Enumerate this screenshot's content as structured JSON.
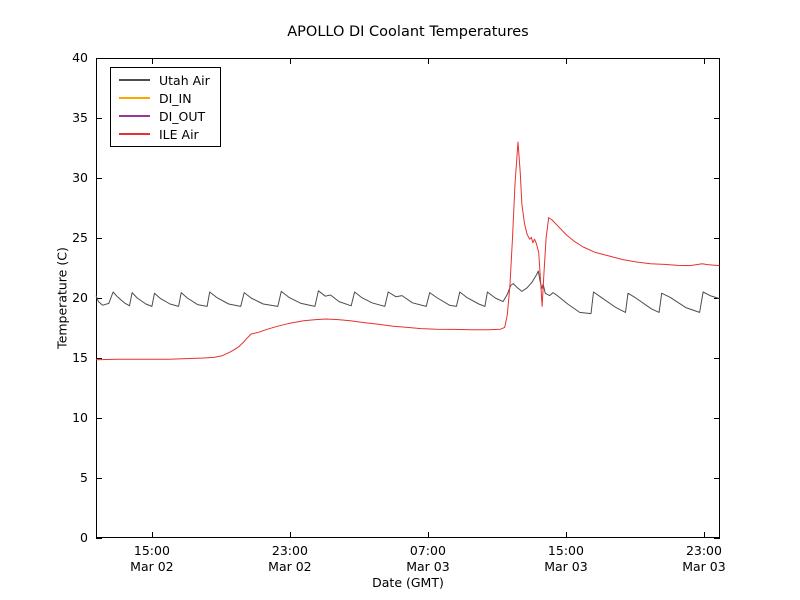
{
  "chart_data": {
    "type": "line",
    "title": "APOLLO DI Coolant Temperatures",
    "xlabel": "Date (GMT)",
    "ylabel": "Temperature (C)",
    "x_unit": "hours since Mar 02 00:00 GMT",
    "xlim": [
      11.76,
      47.93
    ],
    "ylim": [
      0,
      40
    ],
    "grid": false,
    "legend_position": "upper left",
    "background": "#ffffff",
    "axis_color": "#000000",
    "y_ticks": [
      0,
      5,
      10,
      15,
      20,
      25,
      30,
      35,
      40
    ],
    "x_ticks": [
      {
        "t": 15,
        "time": "15:00",
        "date": "Mar 02"
      },
      {
        "t": 23,
        "time": "23:00",
        "date": "Mar 02"
      },
      {
        "t": 31,
        "time": "07:00",
        "date": "Mar 03"
      },
      {
        "t": 39,
        "time": "15:00",
        "date": "Mar 03"
      },
      {
        "t": 47,
        "time": "23:00",
        "date": "Mar 03"
      }
    ],
    "series": [
      {
        "name": "Utah Air",
        "color": "#4d4d4d",
        "points": [
          [
            11.76,
            20.2
          ],
          [
            11.9,
            19.7
          ],
          [
            12.15,
            19.4
          ],
          [
            12.5,
            19.55
          ],
          [
            12.75,
            20.5
          ],
          [
            13.0,
            20.1
          ],
          [
            13.4,
            19.6
          ],
          [
            13.7,
            19.35
          ],
          [
            13.85,
            20.45
          ],
          [
            14.15,
            20.0
          ],
          [
            14.65,
            19.5
          ],
          [
            15.0,
            19.3
          ],
          [
            15.15,
            20.4
          ],
          [
            15.5,
            19.95
          ],
          [
            16.05,
            19.5
          ],
          [
            16.55,
            19.3
          ],
          [
            16.7,
            20.45
          ],
          [
            17.05,
            20.0
          ],
          [
            17.65,
            19.45
          ],
          [
            18.2,
            19.3
          ],
          [
            18.35,
            20.5
          ],
          [
            18.75,
            20.05
          ],
          [
            19.45,
            19.5
          ],
          [
            20.15,
            19.3
          ],
          [
            20.35,
            20.45
          ],
          [
            20.75,
            20.0
          ],
          [
            21.45,
            19.5
          ],
          [
            22.3,
            19.3
          ],
          [
            22.5,
            20.55
          ],
          [
            22.95,
            20.05
          ],
          [
            23.65,
            19.55
          ],
          [
            24.45,
            19.3
          ],
          [
            24.65,
            20.6
          ],
          [
            25.05,
            20.15
          ],
          [
            25.35,
            20.25
          ],
          [
            25.85,
            19.7
          ],
          [
            26.55,
            19.35
          ],
          [
            26.75,
            20.5
          ],
          [
            27.15,
            20.05
          ],
          [
            27.75,
            19.6
          ],
          [
            28.5,
            19.3
          ],
          [
            28.7,
            20.5
          ],
          [
            29.15,
            20.1
          ],
          [
            29.5,
            20.2
          ],
          [
            30.1,
            19.6
          ],
          [
            30.9,
            19.3
          ],
          [
            31.1,
            20.45
          ],
          [
            31.55,
            20.0
          ],
          [
            32.25,
            19.4
          ],
          [
            32.65,
            19.3
          ],
          [
            32.85,
            20.5
          ],
          [
            33.25,
            20.05
          ],
          [
            33.95,
            19.5
          ],
          [
            34.3,
            19.3
          ],
          [
            34.45,
            20.5
          ],
          [
            34.9,
            20.0
          ],
          [
            35.35,
            19.7
          ],
          [
            35.6,
            20.3
          ],
          [
            35.8,
            21.05
          ],
          [
            35.95,
            21.2
          ],
          [
            36.15,
            20.9
          ],
          [
            36.45,
            20.55
          ],
          [
            36.75,
            20.85
          ],
          [
            37.05,
            21.35
          ],
          [
            37.3,
            21.95
          ],
          [
            37.4,
            22.25
          ],
          [
            37.5,
            21.4
          ],
          [
            37.6,
            20.8
          ],
          [
            37.68,
            21.15
          ],
          [
            37.8,
            20.4
          ],
          [
            38.05,
            20.2
          ],
          [
            38.25,
            20.45
          ],
          [
            38.5,
            20.2
          ],
          [
            39.1,
            19.5
          ],
          [
            39.8,
            18.8
          ],
          [
            40.45,
            18.7
          ],
          [
            40.6,
            20.5
          ],
          [
            41.0,
            20.1
          ],
          [
            41.9,
            19.2
          ],
          [
            42.45,
            18.8
          ],
          [
            42.6,
            20.4
          ],
          [
            43.05,
            20.0
          ],
          [
            43.95,
            19.1
          ],
          [
            44.4,
            18.8
          ],
          [
            44.55,
            20.4
          ],
          [
            45.05,
            20.05
          ],
          [
            45.95,
            19.2
          ],
          [
            46.75,
            18.8
          ],
          [
            46.95,
            20.5
          ],
          [
            47.35,
            20.2
          ],
          [
            47.9,
            19.95
          ]
        ]
      },
      {
        "name": "DI_IN",
        "color": "#ffa500",
        "points": []
      },
      {
        "name": "DI_OUT",
        "color": "#993399",
        "points": []
      },
      {
        "name": "ILE Air",
        "color": "#e83030",
        "points": [
          [
            11.76,
            14.85
          ],
          [
            13.0,
            14.9
          ],
          [
            14.0,
            14.9
          ],
          [
            15.0,
            14.9
          ],
          [
            16.0,
            14.9
          ],
          [
            17.0,
            14.95
          ],
          [
            18.0,
            15.0
          ],
          [
            18.6,
            15.05
          ],
          [
            19.1,
            15.2
          ],
          [
            19.6,
            15.55
          ],
          [
            20.0,
            15.9
          ],
          [
            20.3,
            16.3
          ],
          [
            20.55,
            16.7
          ],
          [
            20.75,
            17.0
          ],
          [
            21.2,
            17.15
          ],
          [
            21.7,
            17.4
          ],
          [
            22.3,
            17.65
          ],
          [
            23.0,
            17.9
          ],
          [
            23.8,
            18.1
          ],
          [
            24.5,
            18.2
          ],
          [
            25.1,
            18.25
          ],
          [
            25.8,
            18.2
          ],
          [
            26.5,
            18.1
          ],
          [
            27.3,
            17.95
          ],
          [
            28.2,
            17.8
          ],
          [
            29.0,
            17.65
          ],
          [
            29.8,
            17.55
          ],
          [
            30.6,
            17.45
          ],
          [
            31.5,
            17.4
          ],
          [
            32.5,
            17.38
          ],
          [
            33.5,
            17.36
          ],
          [
            34.5,
            17.36
          ],
          [
            35.2,
            17.4
          ],
          [
            35.45,
            17.55
          ],
          [
            35.6,
            18.6
          ],
          [
            35.75,
            21.0
          ],
          [
            35.9,
            25.0
          ],
          [
            36.05,
            29.5
          ],
          [
            36.22,
            33.0
          ],
          [
            36.35,
            30.5
          ],
          [
            36.45,
            27.8
          ],
          [
            36.6,
            26.2
          ],
          [
            36.75,
            25.3
          ],
          [
            36.9,
            24.9
          ],
          [
            37.0,
            25.05
          ],
          [
            37.08,
            24.6
          ],
          [
            37.18,
            24.9
          ],
          [
            37.28,
            24.55
          ],
          [
            37.42,
            23.8
          ],
          [
            37.55,
            21.0
          ],
          [
            37.62,
            19.3
          ],
          [
            37.72,
            22.0
          ],
          [
            37.85,
            25.0
          ],
          [
            38.0,
            26.7
          ],
          [
            38.2,
            26.5
          ],
          [
            38.6,
            25.9
          ],
          [
            39.0,
            25.3
          ],
          [
            39.5,
            24.7
          ],
          [
            40.0,
            24.25
          ],
          [
            40.7,
            23.8
          ],
          [
            41.5,
            23.5
          ],
          [
            42.3,
            23.2
          ],
          [
            43.1,
            23.0
          ],
          [
            43.9,
            22.85
          ],
          [
            44.7,
            22.8
          ],
          [
            45.5,
            22.72
          ],
          [
            46.2,
            22.7
          ],
          [
            46.9,
            22.85
          ],
          [
            47.2,
            22.78
          ],
          [
            47.9,
            22.7
          ]
        ]
      }
    ]
  }
}
